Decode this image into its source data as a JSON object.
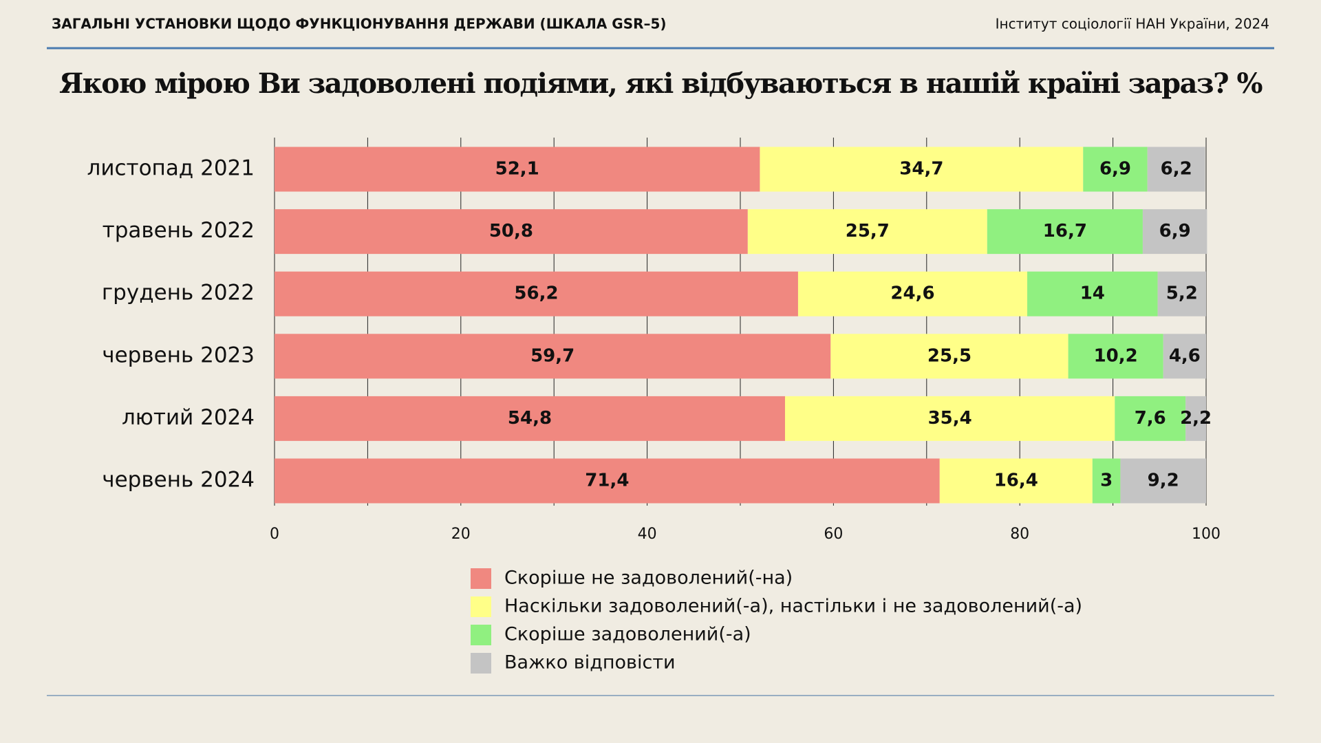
{
  "header": {
    "left": "ЗАГАЛЬНІ УСТАНОВКИ ЩОДО ФУНКЦІОНУВАННЯ ДЕРЖАВИ (ШКАЛА GSR–5)",
    "right": "Інститут соціології НАН України, 2024"
  },
  "chart_data": {
    "type": "stacked-barh",
    "title": "Якою мірою Ви задоволені подіями, які відбуваються в нашій країні зараз? %",
    "categories": [
      "листопад 2021",
      "травень 2022",
      "грудень 2022",
      "червень 2023",
      "лютий 2024",
      "червень 2024"
    ],
    "series": [
      {
        "name": "Скоріше не задоволений(-на)",
        "color": "#f08880",
        "values": [
          52.1,
          50.8,
          56.2,
          59.7,
          54.8,
          71.4
        ],
        "value_labels": [
          "52,1",
          "50,8",
          "56,2",
          "59,7",
          "54,8",
          "71,4"
        ]
      },
      {
        "name": "Наскільки задоволений(-а), настільки і не задоволений(-а)",
        "color": "#ffff88",
        "values": [
          34.7,
          25.7,
          24.6,
          25.5,
          35.4,
          16.4
        ],
        "value_labels": [
          "34,7",
          "25,7",
          "24,6",
          "25,5",
          "35,4",
          "16,4"
        ]
      },
      {
        "name": "Скоріше задоволений(-а)",
        "color": "#90f080",
        "values": [
          6.9,
          16.7,
          14,
          10.2,
          7.6,
          3
        ],
        "value_labels": [
          "6,9",
          "16,7",
          "14",
          "10,2",
          "7,6",
          "3"
        ]
      },
      {
        "name": "Важко відповісти",
        "color": "#c4c4c4",
        "values": [
          6.2,
          6.9,
          5.2,
          4.6,
          2.2,
          9.2
        ],
        "value_labels": [
          "6,2",
          "6,9",
          "5,2",
          "4,6",
          "2,2",
          "9,2"
        ]
      }
    ],
    "xlim": [
      0,
      100
    ],
    "xticks": [
      0,
      20,
      40,
      60,
      80,
      100
    ],
    "xminorticks": [
      10,
      30,
      50,
      70,
      90
    ],
    "grid": true
  }
}
